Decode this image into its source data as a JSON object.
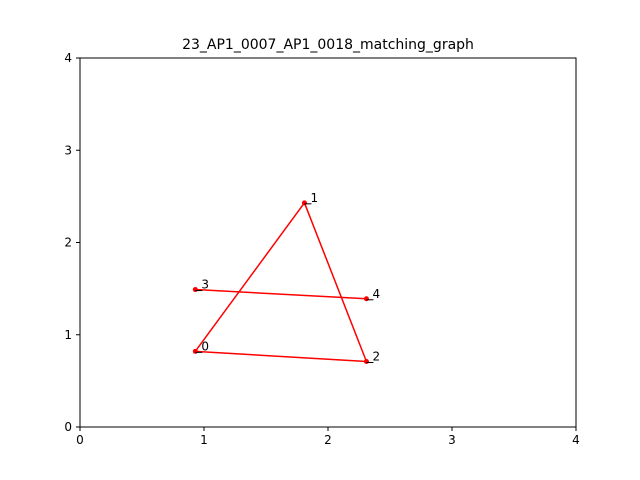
{
  "chart_data": {
    "type": "scatter",
    "title": "23_AP1_0007_AP1_0018_matching_graph",
    "xlabel": "",
    "ylabel": "",
    "xlim": [
      0,
      4
    ],
    "ylim": [
      0,
      4
    ],
    "xticks": [
      "0",
      "1",
      "2",
      "3",
      "4"
    ],
    "yticks": [
      "0",
      "1",
      "2",
      "3",
      "4"
    ],
    "grid": false,
    "color": "#ff0000",
    "nodes": [
      {
        "id": "0",
        "x": 0.93,
        "y": 0.82
      },
      {
        "id": "1",
        "x": 1.81,
        "y": 2.43
      },
      {
        "id": "2",
        "x": 2.31,
        "y": 0.71
      },
      {
        "id": "3",
        "x": 0.93,
        "y": 1.49
      },
      {
        "id": "4",
        "x": 2.31,
        "y": 1.39
      }
    ],
    "edges": [
      [
        "0",
        "1"
      ],
      [
        "1",
        "2"
      ],
      [
        "0",
        "2"
      ],
      [
        "3",
        "4"
      ]
    ]
  }
}
